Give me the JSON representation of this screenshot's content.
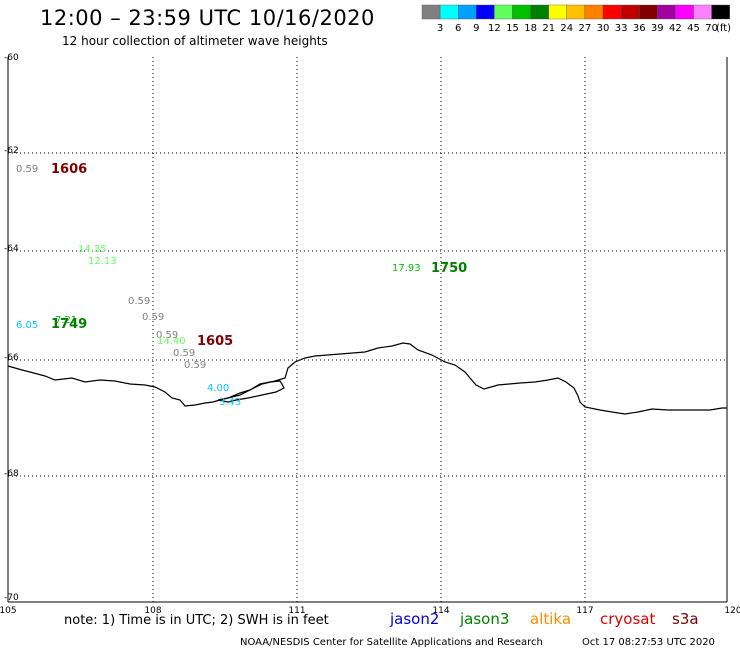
{
  "header": {
    "title": "12:00 – 23:59 UTC 10/16/2020",
    "subtitle": "12 hour collection of altimeter wave heights"
  },
  "legend": {
    "unit": "(ft)",
    "bins": [
      {
        "color": "#808080",
        "label": "3"
      },
      {
        "color": "#00ffff",
        "label": "6"
      },
      {
        "color": "#00a0ff",
        "label": "9"
      },
      {
        "color": "#0000ff",
        "label": "12"
      },
      {
        "color": "#60ff60",
        "label": "15"
      },
      {
        "color": "#00c000",
        "label": "18"
      },
      {
        "color": "#008000",
        "label": "21"
      },
      {
        "color": "#ffff00",
        "label": "24"
      },
      {
        "color": "#ffc000",
        "label": "27"
      },
      {
        "color": "#ff8000",
        "label": "30"
      },
      {
        "color": "#ff0000",
        "label": "33"
      },
      {
        "color": "#c00000",
        "label": "36"
      },
      {
        "color": "#800000",
        "label": "39"
      },
      {
        "color": "#a000a0",
        "label": "42"
      },
      {
        "color": "#ff00ff",
        "label": "45"
      },
      {
        "color": "#ff80ff",
        "label": "70"
      },
      {
        "color": "#000000",
        "label": ""
      }
    ]
  },
  "axes": {
    "y_ticks": [
      "-60",
      "-62",
      "-64",
      "-66",
      "-68",
      "-70"
    ],
    "x_ticks": [
      "105",
      "108",
      "111",
      "114",
      "117",
      "120"
    ]
  },
  "observations": [
    {
      "text": "0.59",
      "color": "#808080"
    },
    {
      "text": "1606",
      "color": "#800000",
      "kind": "time"
    },
    {
      "text": "14.35",
      "color": "#60ff60"
    },
    {
      "text": "12.13",
      "color": "#60ff60"
    },
    {
      "text": "17.93",
      "color": "#00c000"
    },
    {
      "text": "1750",
      "color": "#008000",
      "kind": "time"
    },
    {
      "text": "0.59",
      "color": "#808080"
    },
    {
      "text": "0.59",
      "color": "#808080"
    },
    {
      "text": "6.05",
      "color": "#00c8ff"
    },
    {
      "text": "7.21",
      "color": "#00c000"
    },
    {
      "text": "1749",
      "color": "#008000",
      "kind": "time"
    },
    {
      "text": "0.59",
      "color": "#808080"
    },
    {
      "text": "14.40",
      "color": "#60ff60"
    },
    {
      "text": "1605",
      "color": "#800000",
      "kind": "time"
    },
    {
      "text": "0.59",
      "color": "#808080"
    },
    {
      "text": "0.59",
      "color": "#808080"
    },
    {
      "text": "4.00",
      "color": "#00c8ff"
    },
    {
      "text": "3.43",
      "color": "#00c8ff"
    }
  ],
  "footer": {
    "note": "note: 1) Time is in UTC; 2) SWH is in feet",
    "satellites": [
      {
        "name": "jason2",
        "color": "#0000dd"
      },
      {
        "name": "jason3",
        "color": "#008000"
      },
      {
        "name": "altika",
        "color": "#ff8c00"
      },
      {
        "name": "cryosat",
        "color": "#dd0000"
      },
      {
        "name": "s3a",
        "color": "#800000"
      }
    ],
    "credit": "NOAA/NESDIS Center for Satellite Applications and Research",
    "timestamp": "Oct 17 08:27:53 UTC 2020"
  }
}
